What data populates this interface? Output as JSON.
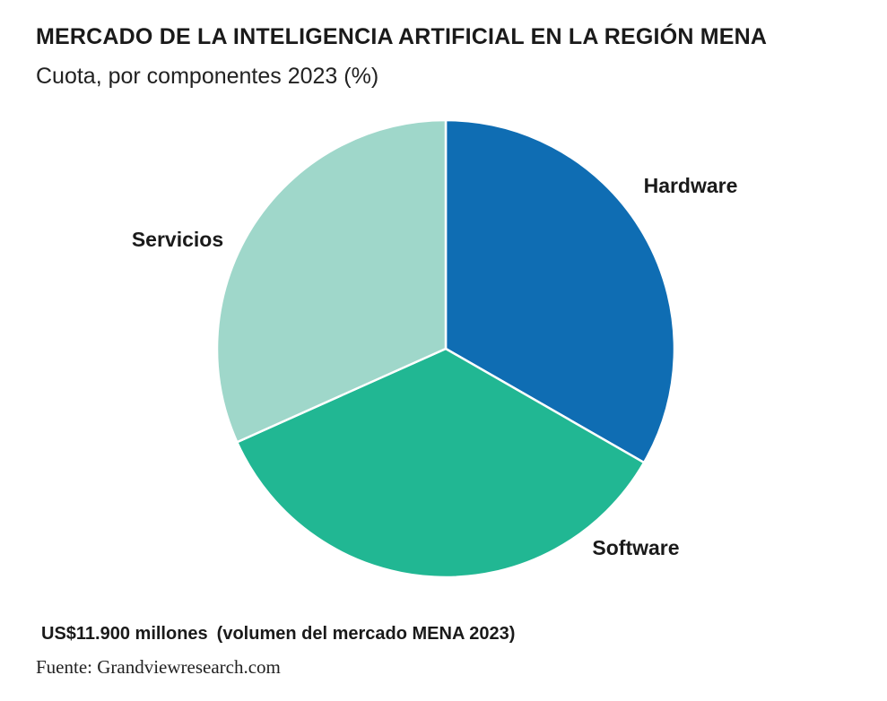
{
  "header": {
    "title": "MERCADO DE LA INTELIGENCIA ARTIFICIAL EN LA REGIÓN MENA",
    "subtitle": "Cuota, por componentes 2023 (%)"
  },
  "chart_data": {
    "type": "pie",
    "title": "MERCADO DE LA INTELIGENCIA ARTIFICIAL EN LA REGIÓN MENA",
    "subtitle": "Cuota, por componentes 2023 (%)",
    "slices": [
      {
        "label": "Hardware",
        "value": 33.3,
        "color": "#0f6db3"
      },
      {
        "label": "Software",
        "value": 35.0,
        "color": "#21b793"
      },
      {
        "label": "Servicios",
        "value": 31.7,
        "color": "#9fd7ca"
      }
    ],
    "start_angle_deg": 0,
    "direction": "clockwise",
    "legend": "none"
  },
  "footer": {
    "total": "US$11.900 millones",
    "total_note": "(volumen del mercado MENA 2023)",
    "source": "Fuente: Grandviewresearch.com"
  }
}
